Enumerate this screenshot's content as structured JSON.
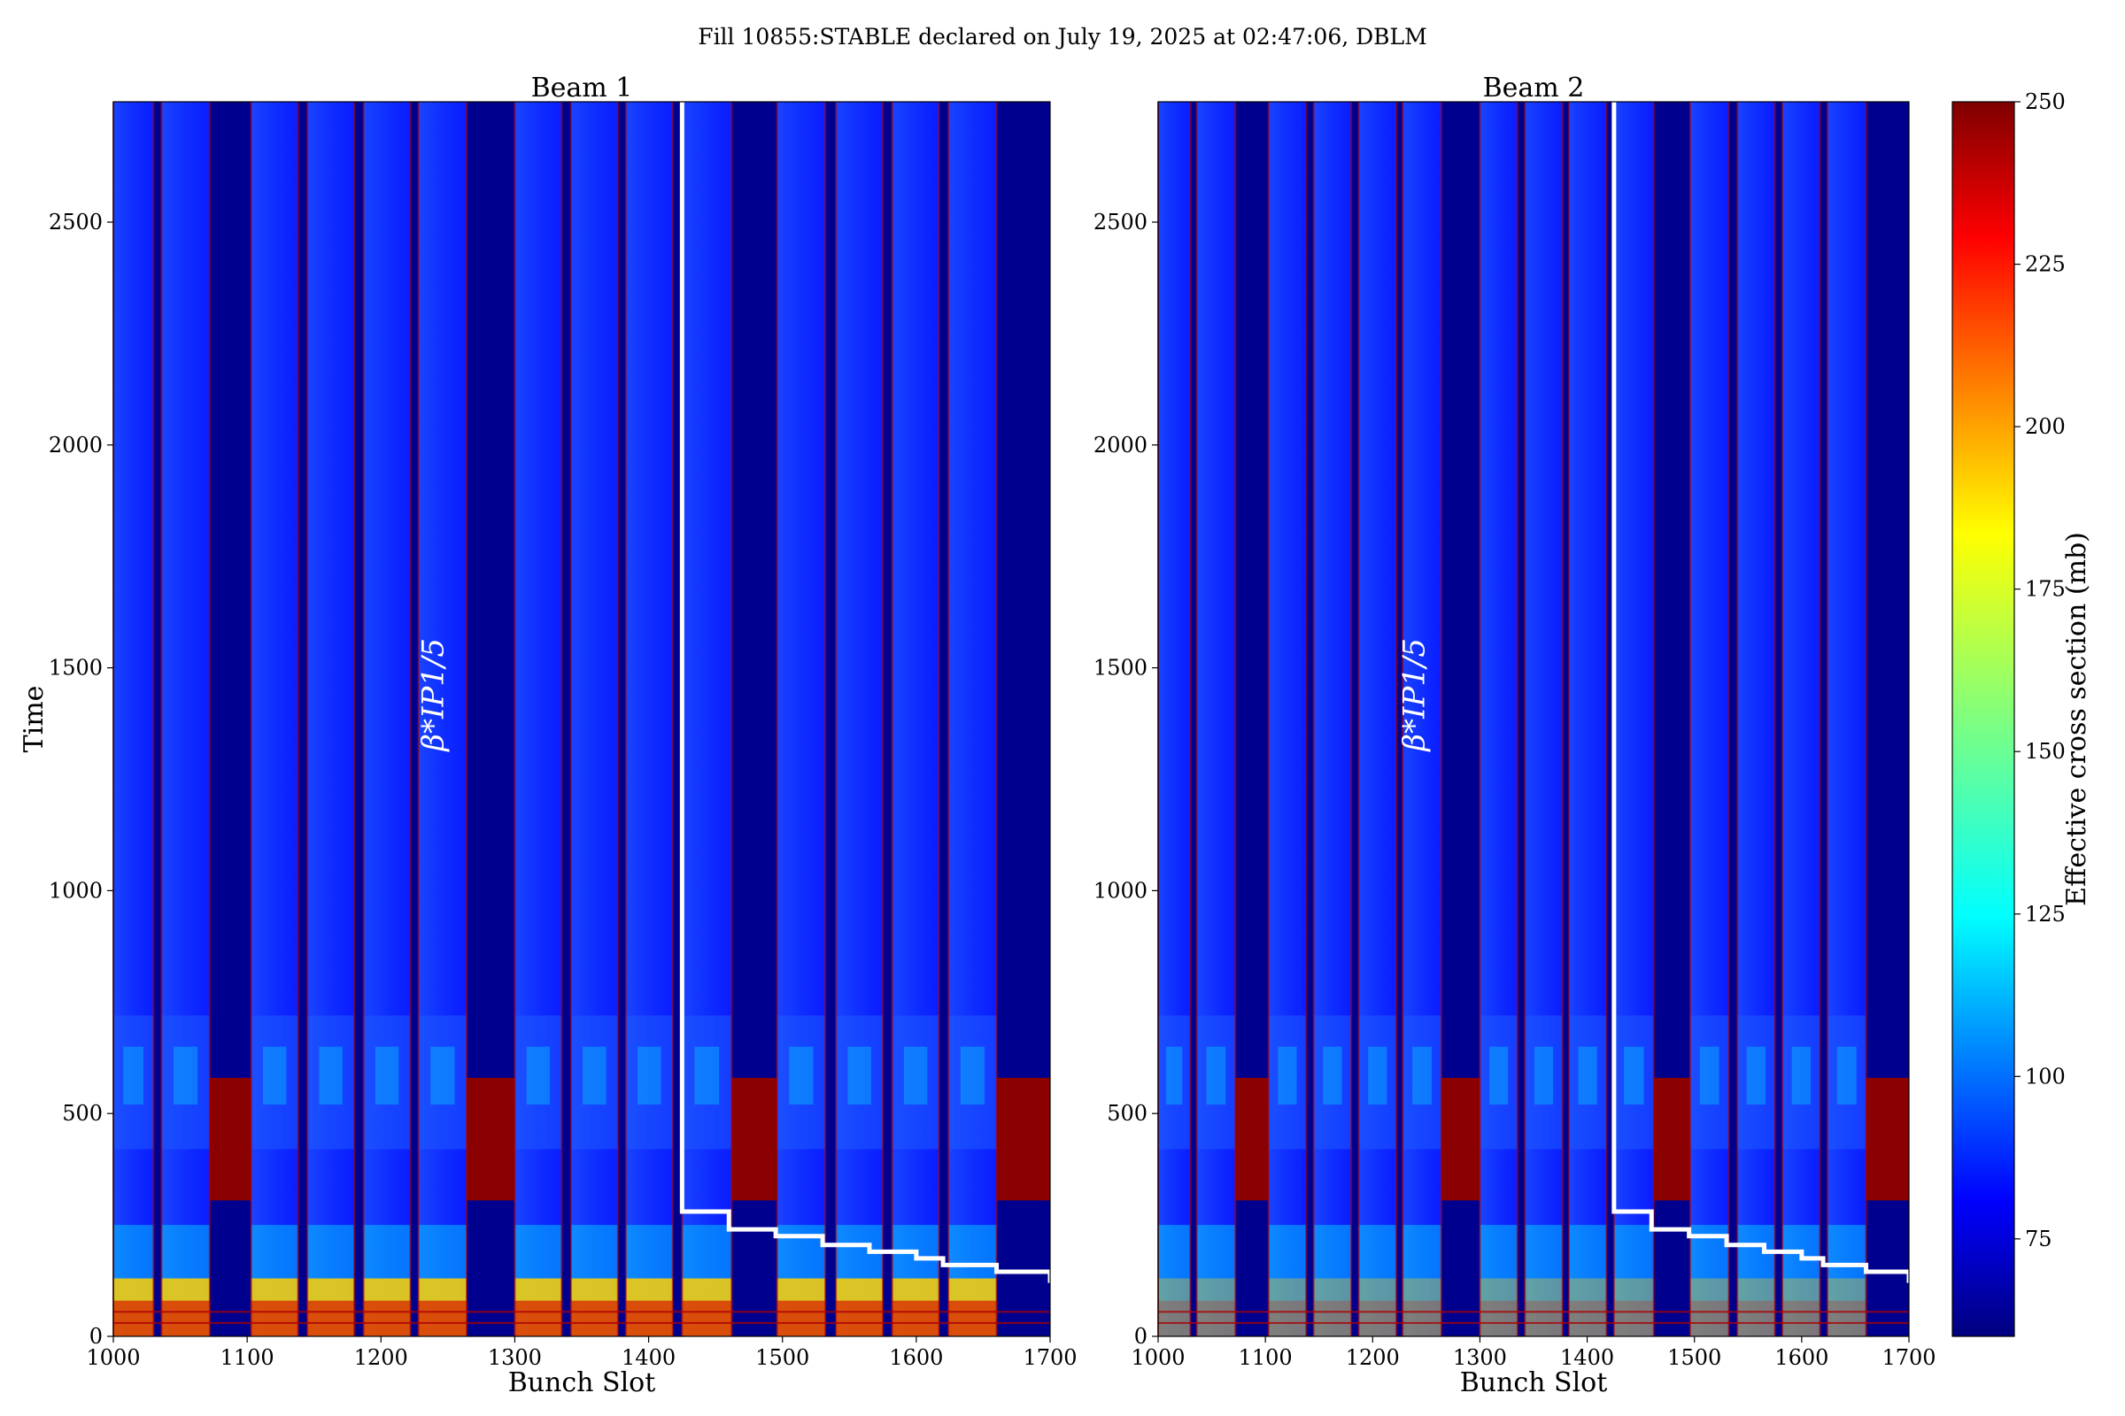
{
  "figure": {
    "suptitle": "Fill 10855:STABLE declared on July 19, 2025 at 02:47:06, DBLM"
  },
  "chart_data": [
    {
      "type": "heatmap",
      "title": "Beam 1",
      "xlabel": "Bunch Slot",
      "ylabel": "Time",
      "xlim": [
        1000,
        1700
      ],
      "ylim": [
        0,
        2770
      ],
      "xticks": [
        1000,
        1100,
        1200,
        1300,
        1400,
        1500,
        1600,
        1700
      ],
      "yticks": [
        0,
        500,
        1000,
        1500,
        2000,
        2500
      ],
      "annotation": "β*IP1/5",
      "overlay_step_line": {
        "color": "#ffffff",
        "points": [
          [
            1425,
            2770
          ],
          [
            1425,
            280
          ],
          [
            1460,
            280
          ],
          [
            1460,
            240
          ],
          [
            1495,
            240
          ],
          [
            1495,
            225
          ],
          [
            1530,
            225
          ],
          [
            1530,
            205
          ],
          [
            1565,
            205
          ],
          [
            1565,
            190
          ],
          [
            1600,
            190
          ],
          [
            1600,
            175
          ],
          [
            1620,
            175
          ],
          [
            1620,
            160
          ],
          [
            1660,
            160
          ],
          [
            1660,
            145
          ],
          [
            1700,
            145
          ],
          [
            1700,
            120
          ]
        ]
      },
      "filled_trains": [
        [
          1000,
          1030
        ],
        [
          1036,
          1072
        ],
        [
          1103,
          1138
        ],
        [
          1145,
          1180
        ],
        [
          1187,
          1222
        ],
        [
          1228,
          1264
        ],
        [
          1300,
          1335
        ],
        [
          1342,
          1377
        ],
        [
          1383,
          1418
        ],
        [
          1425,
          1462
        ],
        [
          1496,
          1532
        ],
        [
          1540,
          1575
        ],
        [
          1582,
          1617
        ],
        [
          1624,
          1660
        ]
      ],
      "red_block_time_range": [
        305,
        580
      ]
    },
    {
      "type": "heatmap",
      "title": "Beam 2",
      "xlabel": "Bunch Slot",
      "ylabel": "",
      "xlim": [
        1000,
        1700
      ],
      "ylim": [
        0,
        2770
      ],
      "xticks": [
        1000,
        1100,
        1200,
        1300,
        1400,
        1500,
        1600,
        1700
      ],
      "yticks": [
        0,
        500,
        1000,
        1500,
        2000,
        2500
      ],
      "annotation": "β*IP1/5",
      "overlay_step_line": {
        "color": "#ffffff",
        "points": [
          [
            1425,
            2770
          ],
          [
            1425,
            280
          ],
          [
            1460,
            280
          ],
          [
            1460,
            240
          ],
          [
            1495,
            240
          ],
          [
            1495,
            225
          ],
          [
            1530,
            225
          ],
          [
            1530,
            205
          ],
          [
            1565,
            205
          ],
          [
            1565,
            190
          ],
          [
            1600,
            190
          ],
          [
            1600,
            175
          ],
          [
            1620,
            175
          ],
          [
            1620,
            160
          ],
          [
            1660,
            160
          ],
          [
            1660,
            145
          ],
          [
            1700,
            145
          ],
          [
            1700,
            120
          ]
        ]
      },
      "filled_trains": [
        [
          1000,
          1030
        ],
        [
          1036,
          1072
        ],
        [
          1103,
          1138
        ],
        [
          1145,
          1180
        ],
        [
          1187,
          1222
        ],
        [
          1228,
          1264
        ],
        [
          1300,
          1335
        ],
        [
          1342,
          1377
        ],
        [
          1383,
          1418
        ],
        [
          1425,
          1462
        ],
        [
          1496,
          1532
        ],
        [
          1540,
          1575
        ],
        [
          1582,
          1617
        ],
        [
          1624,
          1660
        ]
      ],
      "red_block_time_range": [
        305,
        580
      ]
    }
  ],
  "colorbar": {
    "label": "Effective cross section (mb)",
    "range": [
      60,
      250
    ],
    "ticks": [
      75,
      100,
      125,
      150,
      175,
      200,
      225,
      250
    ],
    "colormap": "jet"
  },
  "colors": {
    "empty_slot": "#00008f",
    "filled_main": "#0a1cff",
    "filled_light": "#1e5aff",
    "hot": "#8b0000",
    "warm": "#ffd000",
    "mid": "#00e0ff"
  }
}
